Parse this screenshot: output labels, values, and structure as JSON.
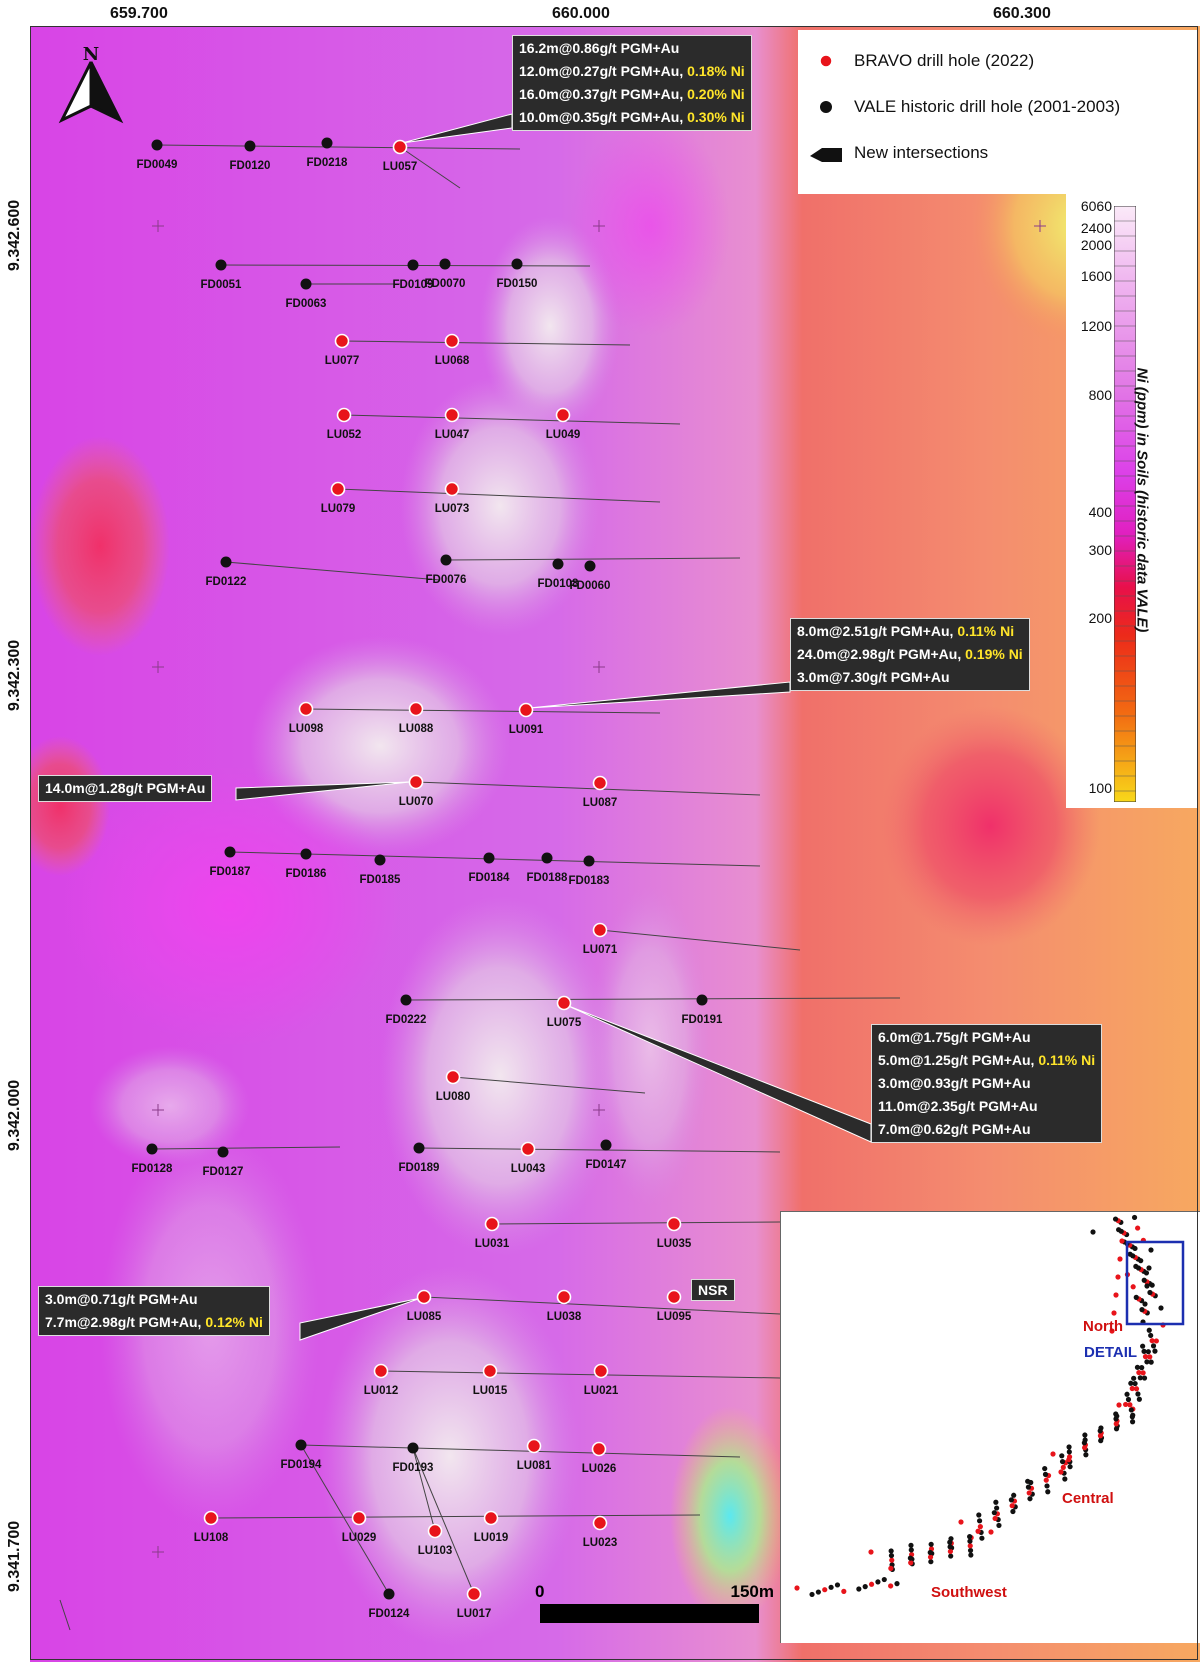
{
  "x_axis_labels": [
    "659.700",
    "660.000",
    "660.300"
  ],
  "y_axis_labels": [
    "9.342.600",
    "9.342.300",
    "9.342.000",
    "9.341.700"
  ],
  "north_arrow": "N",
  "legend": {
    "bravo": "BRAVO drill hole (2022)",
    "vale": "VALE historic drill hole (2001-2003)",
    "intersections": "New intersections"
  },
  "colorbar": {
    "title": "Ni (ppm) in Soils (historic data VALE)",
    "ticks": [
      "6060",
      "2400",
      "2000",
      "1600",
      "1200",
      "800",
      "400",
      "300",
      "200",
      "100"
    ]
  },
  "colors": {
    "bravo": "#e8141b",
    "vale": "#111111",
    "callout_bg": "#2b2b2b",
    "ni_text": "#ffe52a",
    "detail_box": "#1c2fb0"
  },
  "holes": [
    {
      "label": "FD0049",
      "t": "vale"
    },
    {
      "label": "FD0120",
      "t": "vale"
    },
    {
      "label": "FD0218",
      "t": "vale"
    },
    {
      "label": "LU057",
      "t": "bravo"
    },
    {
      "label": "FD0051",
      "t": "vale"
    },
    {
      "label": "FD0063",
      "t": "vale"
    },
    {
      "label": "FD0109",
      "t": "vale"
    },
    {
      "label": "FD0070",
      "t": "vale"
    },
    {
      "label": "FD0150",
      "t": "vale"
    },
    {
      "label": "LU077",
      "t": "bravo"
    },
    {
      "label": "LU068",
      "t": "bravo"
    },
    {
      "label": "LU052",
      "t": "bravo"
    },
    {
      "label": "LU047",
      "t": "bravo"
    },
    {
      "label": "LU049",
      "t": "bravo"
    },
    {
      "label": "LU079",
      "t": "bravo"
    },
    {
      "label": "LU073",
      "t": "bravo"
    },
    {
      "label": "FD0122",
      "t": "vale"
    },
    {
      "label": "FD0076",
      "t": "vale"
    },
    {
      "label": "FD0108",
      "t": "vale"
    },
    {
      "label": "FD0060",
      "t": "vale"
    },
    {
      "label": "LU098",
      "t": "bravo"
    },
    {
      "label": "LU088",
      "t": "bravo"
    },
    {
      "label": "LU091",
      "t": "bravo"
    },
    {
      "label": "LU070",
      "t": "bravo"
    },
    {
      "label": "LU087",
      "t": "bravo"
    },
    {
      "label": "FD0187",
      "t": "vale"
    },
    {
      "label": "FD0186",
      "t": "vale"
    },
    {
      "label": "FD0185",
      "t": "vale"
    },
    {
      "label": "FD0184",
      "t": "vale"
    },
    {
      "label": "FD0188",
      "t": "vale"
    },
    {
      "label": "FD0183",
      "t": "vale"
    },
    {
      "label": "LU071",
      "t": "bravo"
    },
    {
      "label": "FD0222",
      "t": "vale"
    },
    {
      "label": "LU075",
      "t": "bravo"
    },
    {
      "label": "FD0191",
      "t": "vale"
    },
    {
      "label": "LU080",
      "t": "bravo"
    },
    {
      "label": "FD0128",
      "t": "vale"
    },
    {
      "label": "FD0127",
      "t": "vale"
    },
    {
      "label": "FD0189",
      "t": "vale"
    },
    {
      "label": "LU043",
      "t": "bravo"
    },
    {
      "label": "FD0147",
      "t": "vale"
    },
    {
      "label": "LU031",
      "t": "bravo"
    },
    {
      "label": "LU035",
      "t": "bravo"
    },
    {
      "label": "LU085",
      "t": "bravo"
    },
    {
      "label": "LU038",
      "t": "bravo"
    },
    {
      "label": "LU095",
      "t": "bravo"
    },
    {
      "label": "LU012",
      "t": "bravo"
    },
    {
      "label": "LU015",
      "t": "bravo"
    },
    {
      "label": "LU021",
      "t": "bravo"
    },
    {
      "label": "FD0194",
      "t": "vale"
    },
    {
      "label": "FD0193",
      "t": "vale"
    },
    {
      "label": "LU081",
      "t": "bravo"
    },
    {
      "label": "LU026",
      "t": "bravo"
    },
    {
      "label": "LU108",
      "t": "bravo"
    },
    {
      "label": "LU029",
      "t": "bravo"
    },
    {
      "label": "LU103",
      "t": "bravo"
    },
    {
      "label": "LU019",
      "t": "bravo"
    },
    {
      "label": "LU023",
      "t": "bravo"
    },
    {
      "label": "FD0124",
      "t": "vale"
    },
    {
      "label": "LU017",
      "t": "bravo"
    }
  ],
  "callouts": [
    {
      "lines": [
        {
          "a": "16.2m@0.86g/t PGM+Au",
          "b": ""
        },
        {
          "a": "12.0m@0.27g/t PGM+Au, ",
          "b": "0.18% Ni"
        },
        {
          "a": "16.0m@0.37g/t PGM+Au, ",
          "b": "0.20% Ni"
        },
        {
          "a": "10.0m@0.35g/t PGM+Au, ",
          "b": "0.30% Ni"
        }
      ]
    },
    {
      "lines": [
        {
          "a": "8.0m@2.51g/t PGM+Au, ",
          "b": "0.11% Ni"
        },
        {
          "a": "24.0m@2.98g/t PGM+Au, ",
          "b": "0.19% Ni"
        },
        {
          "a": "3.0m@7.30g/t PGM+Au",
          "b": ""
        }
      ]
    },
    {
      "lines": [
        {
          "a": "14.0m@1.28g/t PGM+Au",
          "b": ""
        }
      ]
    },
    {
      "lines": [
        {
          "a": "6.0m@1.75g/t PGM+Au",
          "b": ""
        },
        {
          "a": "5.0m@1.25g/t PGM+Au, ",
          "b": "0.11% Ni"
        },
        {
          "a": "3.0m@0.93g/t PGM+Au",
          "b": ""
        },
        {
          "a": "11.0m@2.35g/t PGM+Au",
          "b": ""
        },
        {
          "a": "7.0m@0.62g/t PGM+Au",
          "b": ""
        }
      ]
    },
    {
      "lines": [
        {
          "a": "3.0m@0.71g/t PGM+Au",
          "b": ""
        },
        {
          "a": "7.7m@2.98g/t PGM+Au, ",
          "b": "0.12% Ni"
        }
      ]
    }
  ],
  "nsr_label": "NSR",
  "scale": {
    "start": "0",
    "end": "150m"
  },
  "inset": {
    "north": "North",
    "detail": "DETAIL",
    "central": "Central",
    "southwest": "Southwest"
  }
}
